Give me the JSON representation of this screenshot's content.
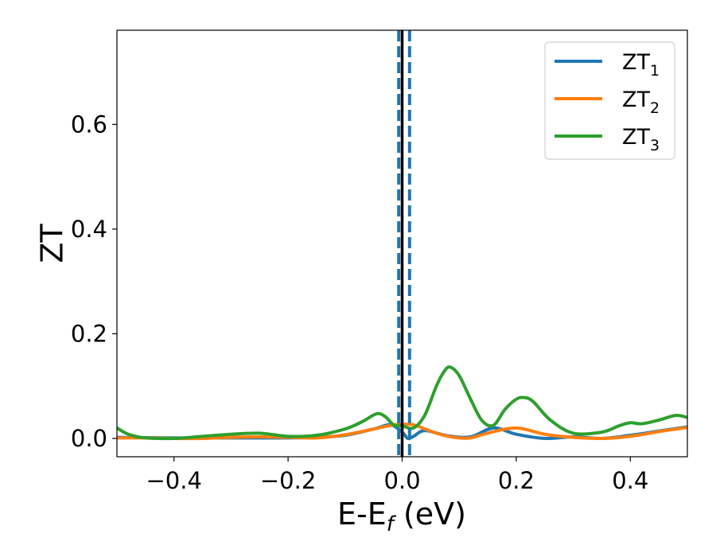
{
  "chart_data": {
    "type": "line",
    "xlabel_main": "E-E",
    "xlabel_sub": "f",
    "xlabel_unit": " (eV)",
    "ylabel": "ZT",
    "xlim": [
      -0.5,
      0.5
    ],
    "ylim": [
      -0.035,
      0.78
    ],
    "x_ticks": [
      {
        "value": -0.4,
        "label": "−0.4"
      },
      {
        "value": -0.2,
        "label": "−0.2"
      },
      {
        "value": 0.0,
        "label": "0.0"
      },
      {
        "value": 0.2,
        "label": "0.2"
      },
      {
        "value": 0.4,
        "label": "0.4"
      }
    ],
    "y_ticks": [
      {
        "value": 0.0,
        "label": "0.0"
      },
      {
        "value": 0.2,
        "label": "0.2"
      },
      {
        "value": 0.4,
        "label": "0.4"
      },
      {
        "value": 0.6,
        "label": "0.6"
      }
    ],
    "grid": false,
    "legend_position": "top-right",
    "vertical_lines": [
      {
        "x": 0.0,
        "color": "#000000",
        "style": "solid"
      },
      {
        "x": -0.006,
        "color": "#1f77b4",
        "style": "dashed"
      },
      {
        "x": 0.013,
        "color": "#1f77b4",
        "style": "dashed"
      }
    ],
    "series": [
      {
        "name_main": "ZT",
        "name_sub": "1",
        "color": "#1f77b4",
        "x": [
          -0.5,
          -0.45,
          -0.4,
          -0.35,
          -0.3,
          -0.25,
          -0.2,
          -0.15,
          -0.1,
          -0.05,
          -0.02,
          0.0,
          0.01,
          0.02,
          0.04,
          0.08,
          0.12,
          0.16,
          0.2,
          0.25,
          0.3,
          0.35,
          0.4,
          0.45,
          0.5
        ],
        "y": [
          0.002,
          0.0015,
          0.001,
          0.001,
          0.001,
          0.001,
          0.001,
          0.002,
          0.006,
          0.018,
          0.026,
          0.012,
          0.0,
          0.004,
          0.015,
          0.005,
          0.003,
          0.02,
          0.008,
          0.0,
          0.003,
          0.0,
          0.006,
          0.014,
          0.022
        ]
      },
      {
        "name_main": "ZT",
        "name_sub": "2",
        "color": "#ff7f0e",
        "x": [
          -0.5,
          -0.45,
          -0.4,
          -0.35,
          -0.3,
          -0.25,
          -0.2,
          -0.15,
          -0.1,
          -0.05,
          -0.02,
          0.0,
          0.02,
          0.04,
          0.06,
          0.08,
          0.1,
          0.12,
          0.15,
          0.2,
          0.25,
          0.3,
          0.35,
          0.4,
          0.45,
          0.5
        ],
        "y": [
          0.001,
          0.001,
          0.0,
          0.0,
          0.002,
          0.003,
          0.002,
          0.001,
          0.007,
          0.018,
          0.025,
          0.027,
          0.026,
          0.018,
          0.01,
          0.004,
          0.001,
          0.001,
          0.01,
          0.02,
          0.008,
          0.002,
          0.0,
          0.004,
          0.013,
          0.021
        ]
      },
      {
        "name_main": "ZT",
        "name_sub": "3",
        "color": "#2ca02c",
        "x": [
          -0.5,
          -0.48,
          -0.45,
          -0.4,
          -0.35,
          -0.3,
          -0.25,
          -0.2,
          -0.15,
          -0.1,
          -0.07,
          -0.045,
          -0.03,
          -0.015,
          0.0,
          0.02,
          0.04,
          0.06,
          0.075,
          0.085,
          0.1,
          0.12,
          0.14,
          0.16,
          0.18,
          0.2,
          0.215,
          0.23,
          0.26,
          0.3,
          0.35,
          0.38,
          0.4,
          0.42,
          0.45,
          0.48,
          0.5
        ],
        "y": [
          0.02,
          0.008,
          0.001,
          0.0,
          0.004,
          0.008,
          0.01,
          0.004,
          0.006,
          0.018,
          0.032,
          0.047,
          0.042,
          0.026,
          0.024,
          0.02,
          0.045,
          0.1,
          0.13,
          0.136,
          0.12,
          0.075,
          0.034,
          0.025,
          0.055,
          0.075,
          0.078,
          0.07,
          0.035,
          0.01,
          0.012,
          0.024,
          0.03,
          0.028,
          0.035,
          0.044,
          0.04
        ]
      }
    ]
  }
}
